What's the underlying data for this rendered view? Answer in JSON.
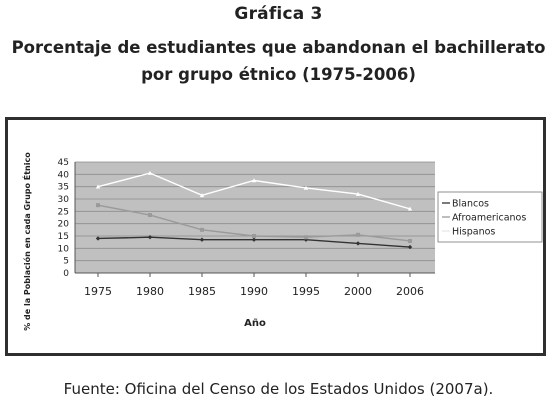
{
  "figure": {
    "label": "Gráfica 3",
    "title_line1": "Porcentaje de estudiantes que abandonan el bachillerato",
    "title_line2": "por grupo étnico (1975-2006)"
  },
  "source": "Fuente: Oficina del Censo de los Estados Unidos (2007a).",
  "chart_data": {
    "type": "line",
    "xlabel": "Año",
    "ylabel": "% de la Población en cada Grupo Étnico",
    "categories": [
      "1975",
      "1980",
      "1985",
      "1990",
      "1995",
      "2000",
      "2006"
    ],
    "ylim": [
      0,
      45
    ],
    "yticks": [
      0,
      5,
      10,
      15,
      20,
      25,
      30,
      35,
      40,
      45
    ],
    "grid": true,
    "legend_position": "right",
    "series": [
      {
        "name": "Blancos",
        "values": [
          14,
          14.5,
          13.5,
          13.5,
          13.5,
          12,
          10.5
        ],
        "color": "#333333"
      },
      {
        "name": "Afroamericanos",
        "values": [
          27.5,
          23.5,
          17.5,
          15,
          14.5,
          15.5,
          13
        ],
        "color": "#9a9a9a"
      },
      {
        "name": "Hispanos",
        "values": [
          35,
          40.5,
          31.5,
          37.5,
          34.5,
          32,
          26
        ],
        "color": "#ffffff"
      }
    ]
  },
  "colors": {
    "plot_background": "#c0c0c0",
    "gridline": "#8c8c8c",
    "frame": "#2f2f2f"
  }
}
